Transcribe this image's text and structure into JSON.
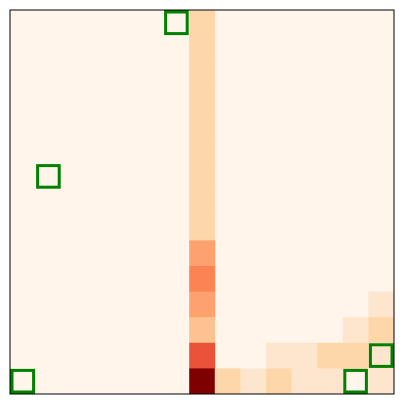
{
  "grid": {
    "rows": 15,
    "cols": 15,
    "base_color": "#fff5eb",
    "frame_color": "#000000",
    "marker_color": "#008000",
    "cells": [
      {
        "row": 0,
        "col": 7,
        "color": "#fdd7a9"
      },
      {
        "row": 1,
        "col": 7,
        "color": "#fdd7a9"
      },
      {
        "row": 2,
        "col": 7,
        "color": "#fdd7a9"
      },
      {
        "row": 3,
        "col": 7,
        "color": "#fdd7a9"
      },
      {
        "row": 4,
        "col": 7,
        "color": "#fdd7a9"
      },
      {
        "row": 5,
        "col": 7,
        "color": "#fdd7a9"
      },
      {
        "row": 6,
        "col": 7,
        "color": "#fdd7a9"
      },
      {
        "row": 7,
        "col": 7,
        "color": "#fdd7a9"
      },
      {
        "row": 8,
        "col": 7,
        "color": "#fdd7a9"
      },
      {
        "row": 9,
        "col": 7,
        "color": "#fda16e"
      },
      {
        "row": 10,
        "col": 7,
        "color": "#fc8354"
      },
      {
        "row": 11,
        "col": 7,
        "color": "#fda16e"
      },
      {
        "row": 11,
        "col": 14,
        "color": "#fee6ce"
      },
      {
        "row": 12,
        "col": 7,
        "color": "#fdc28f"
      },
      {
        "row": 12,
        "col": 13,
        "color": "#fee6ce"
      },
      {
        "row": 12,
        "col": 14,
        "color": "#fdd7a9"
      },
      {
        "row": 13,
        "col": 7,
        "color": "#ea533a"
      },
      {
        "row": 13,
        "col": 10,
        "color": "#fee6ce"
      },
      {
        "row": 13,
        "col": 11,
        "color": "#fee6ce"
      },
      {
        "row": 13,
        "col": 12,
        "color": "#fdd7a9"
      },
      {
        "row": 13,
        "col": 13,
        "color": "#fdd7a9"
      },
      {
        "row": 13,
        "col": 14,
        "color": "#fee6ce"
      },
      {
        "row": 14,
        "col": 7,
        "color": "#7f0000"
      },
      {
        "row": 14,
        "col": 8,
        "color": "#fdd7a9"
      },
      {
        "row": 14,
        "col": 9,
        "color": "#fee6ce"
      },
      {
        "row": 14,
        "col": 10,
        "color": "#fdd7a9"
      },
      {
        "row": 14,
        "col": 11,
        "color": "#fee6ce"
      },
      {
        "row": 14,
        "col": 12,
        "color": "#fee6ce"
      },
      {
        "row": 14,
        "col": 14,
        "color": "#fee6ce"
      }
    ],
    "markers": [
      {
        "row": 0,
        "col": 6
      },
      {
        "row": 6,
        "col": 1
      },
      {
        "row": 13,
        "col": 14
      },
      {
        "row": 14,
        "col": 0
      },
      {
        "row": 14,
        "col": 13
      }
    ]
  }
}
